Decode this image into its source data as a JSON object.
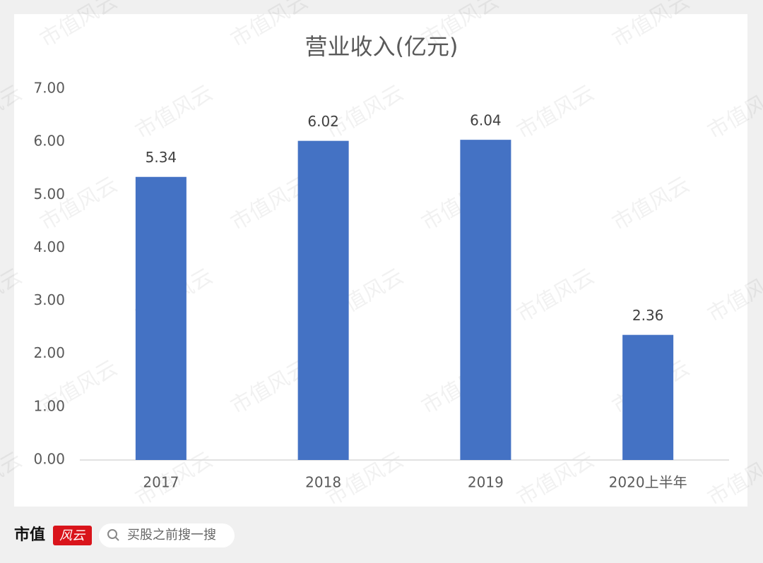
{
  "chart_data": {
    "type": "bar",
    "title": "营业收入(亿元)",
    "categories": [
      "2017",
      "2018",
      "2019",
      "2020上半年"
    ],
    "values": [
      5.34,
      6.02,
      6.04,
      2.36
    ],
    "color": "#4472c4",
    "ylim": [
      0,
      7
    ],
    "yticks": [
      {
        "value": 0,
        "label": "0.00"
      },
      {
        "value": 1,
        "label": "1.00"
      },
      {
        "value": 2,
        "label": "2.00"
      },
      {
        "value": 3,
        "label": "3.00"
      },
      {
        "value": 4,
        "label": "4.00"
      },
      {
        "value": 5,
        "label": "5.00"
      },
      {
        "value": 6,
        "label": "6.00"
      },
      {
        "value": 7,
        "label": "7.00"
      }
    ],
    "grid": false
  },
  "watermark": "市值风云",
  "footer": {
    "brand_left": "市值",
    "brand_right": "风云",
    "search_placeholder": "买股之前搜一搜"
  }
}
